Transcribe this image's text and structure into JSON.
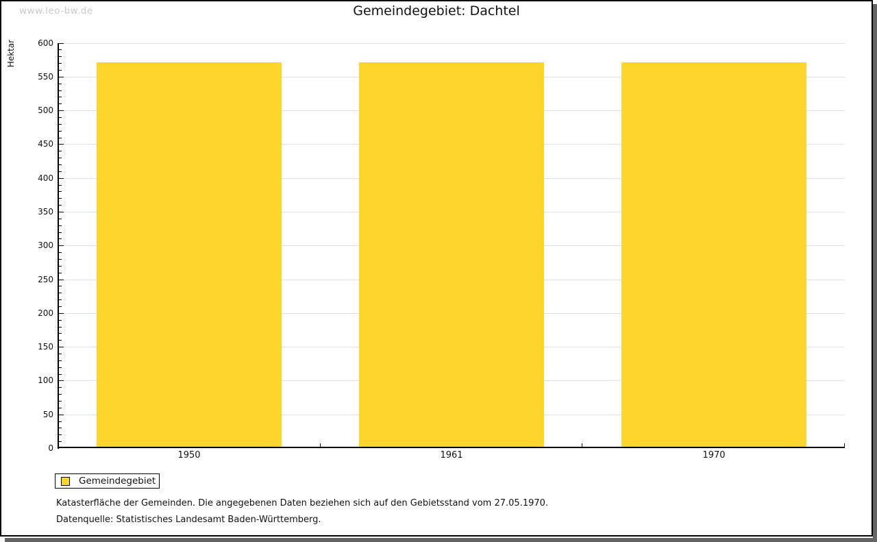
{
  "page": {
    "watermark": "www.leo-bw.de",
    "footnotes": [
      "Katasterfläche der Gemeinden. Die angegebenen Daten beziehen sich auf den Gebietsstand vom 27.05.1970.",
      "Datenquelle: Statistisches Landesamt Baden-Württemberg."
    ]
  },
  "chart_data": {
    "type": "bar",
    "title": "Gemeindegebiet: Dachtel",
    "xlabel": "",
    "ylabel": "Hektar",
    "categories": [
      "1950",
      "1961",
      "1970"
    ],
    "series": [
      {
        "name": "Gemeindegebiet",
        "values": [
          571,
          571,
          571
        ],
        "color": "#fdd52d"
      }
    ],
    "ylim": [
      0,
      600
    ],
    "y_major_step": 50,
    "y_minor_step": 10,
    "grid": true,
    "gridline_color": "#e0e0e0",
    "legend_position": "bottom-left"
  }
}
